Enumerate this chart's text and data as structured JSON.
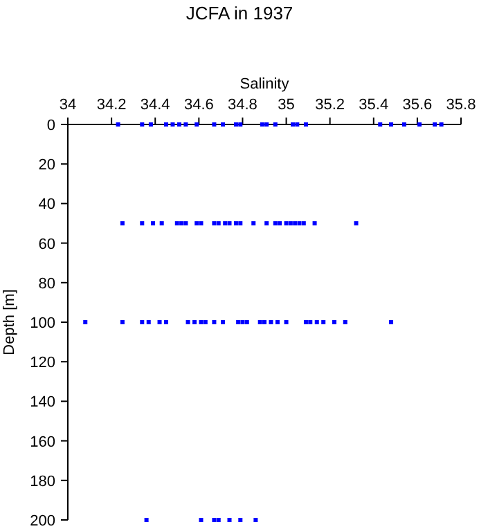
{
  "chart_data": {
    "type": "scatter",
    "title": "JCFA in 1937",
    "xlabel": "Salinity",
    "ylabel": "Depth [m]",
    "x": [
      34.23,
      34.34,
      34.38,
      34.45,
      34.48,
      34.51,
      34.54,
      34.59,
      34.67,
      34.71,
      34.77,
      34.79,
      34.89,
      34.91,
      34.95,
      35.03,
      35.05,
      35.09,
      35.43,
      35.48,
      35.54,
      35.61,
      35.68,
      35.71,
      34.25,
      34.34,
      34.39,
      34.43,
      34.5,
      34.52,
      34.54,
      34.59,
      34.61,
      34.67,
      34.69,
      34.72,
      34.74,
      34.77,
      34.79,
      34.85,
      34.91,
      34.95,
      34.97,
      35.0,
      35.02,
      35.04,
      35.06,
      35.08,
      35.13,
      35.32,
      34.08,
      34.25,
      34.34,
      34.37,
      34.42,
      34.45,
      34.55,
      34.58,
      34.61,
      34.63,
      34.67,
      34.71,
      34.78,
      34.8,
      34.82,
      34.88,
      34.9,
      34.93,
      34.96,
      35.0,
      35.09,
      35.11,
      35.14,
      35.17,
      35.22,
      35.27,
      35.48,
      34.36,
      34.61,
      34.67,
      34.69,
      34.74,
      34.79,
      34.86
    ],
    "series": [
      {
        "color": "#0000ff",
        "values": [
          0,
          0,
          0,
          0,
          0,
          0,
          0,
          0,
          0,
          0,
          0,
          0,
          0,
          0,
          0,
          0,
          0,
          0,
          0,
          0,
          0,
          0,
          0,
          0,
          50,
          50,
          50,
          50,
          50,
          50,
          50,
          50,
          50,
          50,
          50,
          50,
          50,
          50,
          50,
          50,
          50,
          50,
          50,
          50,
          50,
          50,
          50,
          50,
          50,
          50,
          100,
          100,
          100,
          100,
          100,
          100,
          100,
          100,
          100,
          100,
          100,
          100,
          100,
          100,
          100,
          100,
          100,
          100,
          100,
          100,
          100,
          100,
          100,
          100,
          100,
          100,
          100,
          200,
          200,
          200,
          200,
          200,
          200,
          200
        ]
      }
    ],
    "xlim": [
      34,
      35.8
    ],
    "xticks": [
      34,
      34.2,
      34.4,
      34.6,
      34.8,
      35,
      35.2,
      35.4,
      35.6,
      35.8
    ],
    "ylim": [
      200,
      0
    ],
    "yticks": [
      0,
      20,
      40,
      60,
      80,
      100,
      120,
      140,
      160,
      180,
      200
    ],
    "marker": "square",
    "grid": false
  }
}
